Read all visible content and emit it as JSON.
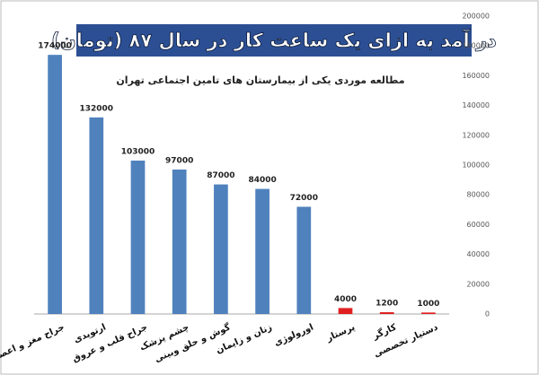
{
  "chart_data": {
    "type": "bar",
    "title": "در آمد به ازای یک ساعت کار در سال ۸۷ (تومان)",
    "subtitle": "مطالعه موردی یکی از بیمارستان های تامین اجتماعی تهران",
    "categories": [
      "جراح مغز و اعصاب",
      "ارتوپدی",
      "جراح قلب و عروق",
      "چشم پزشک",
      "گوش و حلق وبینی",
      "زنان و زایمان",
      "اورولوژی",
      "پرستار",
      "کارگر",
      "دستیار تخصصی"
    ],
    "values": [
      174000,
      132000,
      103000,
      97000,
      87000,
      84000,
      72000,
      4000,
      1200,
      1000
    ],
    "colors": [
      "#4f81bd",
      "#4f81bd",
      "#4f81bd",
      "#4f81bd",
      "#4f81bd",
      "#4f81bd",
      "#4f81bd",
      "#e02020",
      "#e02020",
      "#e02020"
    ],
    "ylim": [
      0,
      200000
    ],
    "yticks": [
      0,
      20000,
      40000,
      60000,
      80000,
      100000,
      120000,
      140000,
      160000,
      180000,
      200000
    ],
    "grid": false
  }
}
